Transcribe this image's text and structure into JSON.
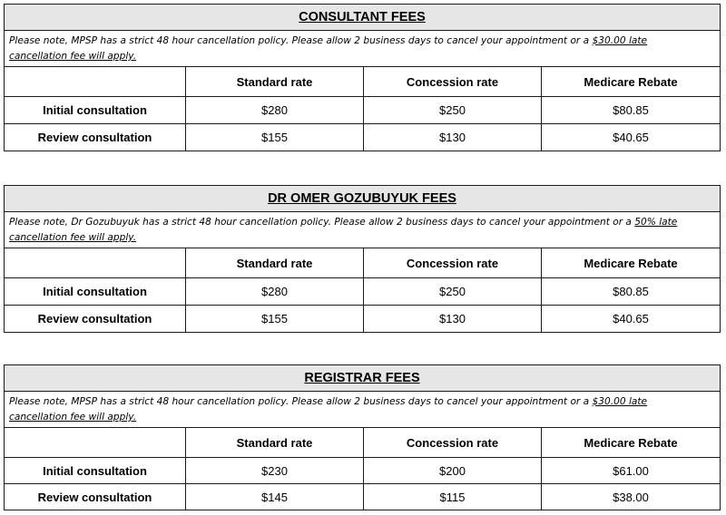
{
  "tables": [
    {
      "title": "CONSULTANT FEES",
      "note_prefix": "Please note, MPSP has a strict 48 hour cancellation policy.  Please allow 2 business days to cancel your appointment or a ",
      "note_fee": "$30.00 late",
      "note_fee_cont": "cancellation fee will apply.",
      "headers": [
        "",
        "Standard rate",
        "Concession rate",
        "Medicare Rebate"
      ],
      "rows": [
        [
          "Initial consultation",
          "$280",
          "$250",
          "$80.85"
        ],
        [
          "Review consultation",
          "$155",
          "$130",
          "$40.65"
        ]
      ]
    },
    {
      "title": "DR OMER GOZUBUYUK FEES",
      "note_prefix": "Please note, Dr Gozubuyuk has a strict 48 hour cancellation policy. Please allow 2 business days to cancel your appointment or a ",
      "note_fee": "50% late",
      "note_fee_cont": "cancellation fee will apply.",
      "headers": [
        "",
        "Standard rate",
        "Concession rate",
        "Medicare Rebate"
      ],
      "rows": [
        [
          "Initial consultation",
          "$280",
          "$250",
          "$80.85"
        ],
        [
          "Review consultation",
          "$155",
          "$130",
          "$40.65"
        ]
      ]
    },
    {
      "title": "REGISTRAR FEES",
      "note_prefix": "Please note, MPSP has a strict 48 hour cancellation policy.  Please allow 2 business days to cancel your appointment or a ",
      "note_fee": "$30.00 late",
      "note_fee_cont": "cancellation fee will apply.",
      "headers": [
        "",
        "Standard rate",
        "Concession rate",
        "Medicare Rebate"
      ],
      "rows": [
        [
          "Initial consultation",
          "$230",
          "$200",
          "$61.00"
        ],
        [
          "Review consultation",
          "$145",
          "$115",
          "$38.00"
        ]
      ]
    }
  ]
}
